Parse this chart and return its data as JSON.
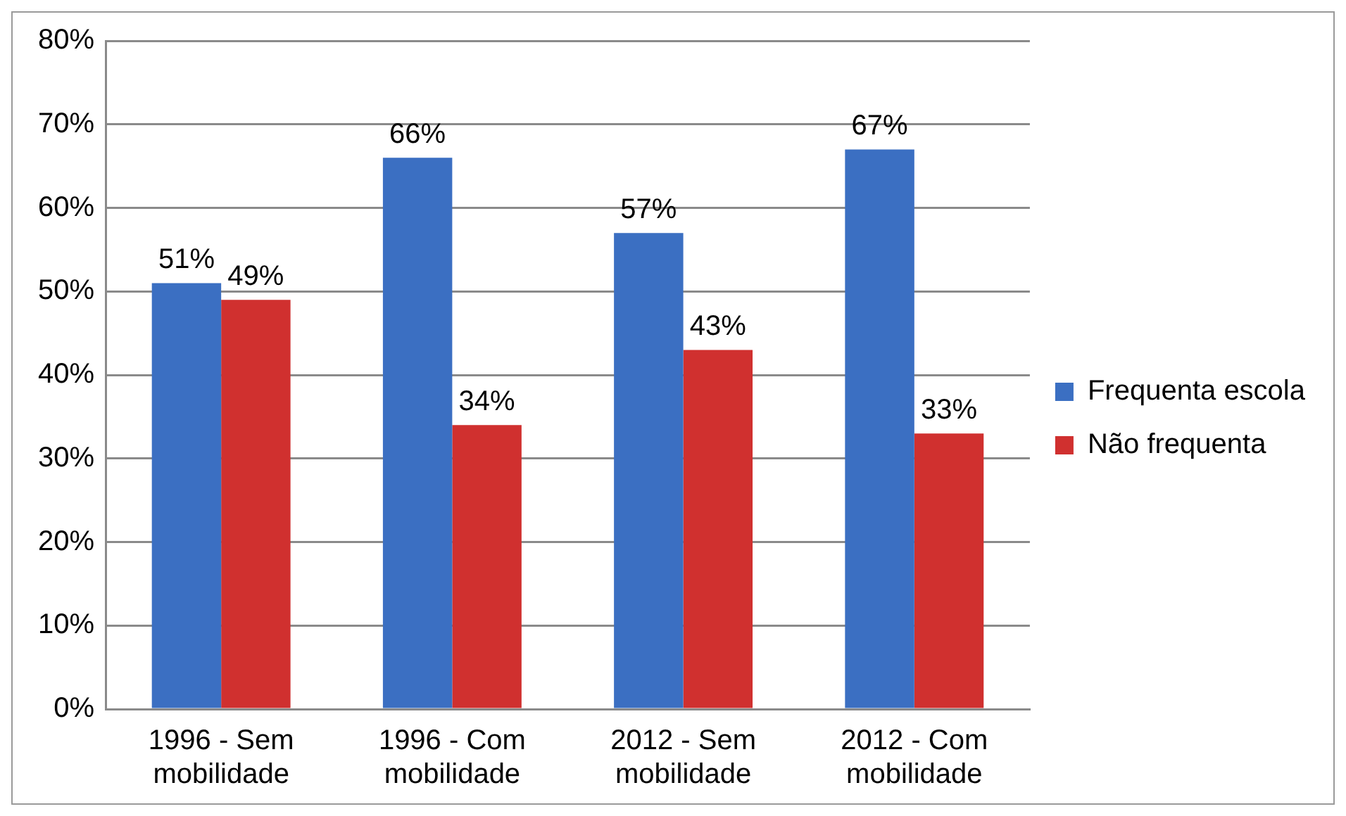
{
  "chart_data": {
    "type": "bar",
    "categories": [
      "1996 - Sem mobilidade",
      "1996 - Com mobilidade",
      "2012 - Sem mobilidade",
      "2012 - Com mobilidade"
    ],
    "series": [
      {
        "name": "Frequenta escola",
        "color": "#3b6fc2",
        "values": [
          51,
          66,
          57,
          67
        ],
        "value_labels": [
          "51%",
          "66%",
          "57%",
          "67%"
        ]
      },
      {
        "name": "Não frequenta",
        "color": "#d0302f",
        "values": [
          49,
          34,
          43,
          33
        ],
        "value_labels": [
          "49%",
          "34%",
          "43%",
          "33%"
        ]
      }
    ],
    "ylim": [
      0,
      80
    ],
    "yticks": [
      {
        "value": 0,
        "label": "0%"
      },
      {
        "value": 10,
        "label": "10%"
      },
      {
        "value": 20,
        "label": "20%"
      },
      {
        "value": 30,
        "label": "30%"
      },
      {
        "value": 40,
        "label": "40%"
      },
      {
        "value": 50,
        "label": "50%"
      },
      {
        "value": 60,
        "label": "60%"
      },
      {
        "value": 70,
        "label": "70%"
      },
      {
        "value": 80,
        "label": "80%"
      }
    ],
    "grid": "y",
    "legend": "right"
  }
}
